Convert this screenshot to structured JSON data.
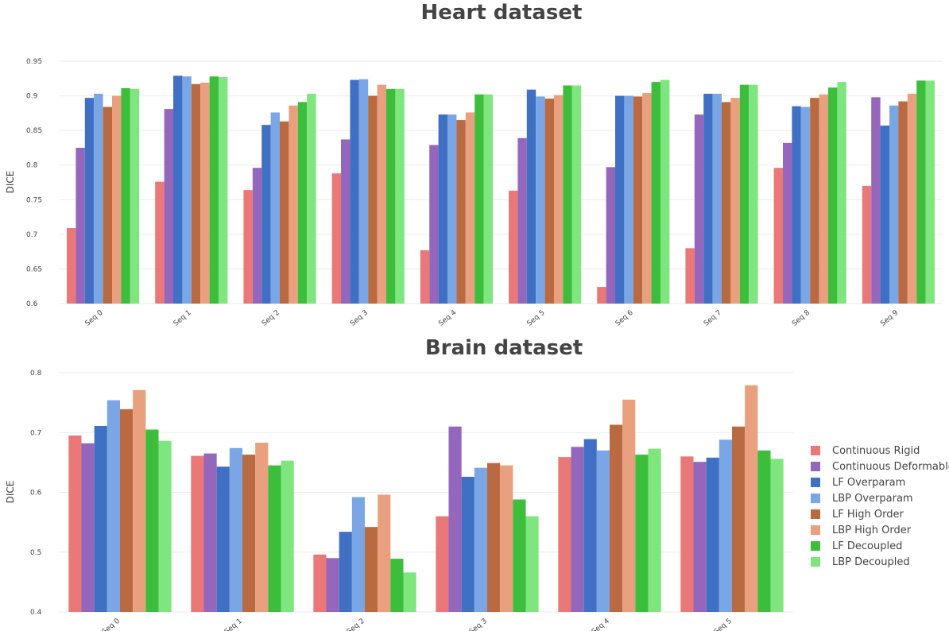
{
  "legend": [
    {
      "name": "Continuous Rigid",
      "color": "#EB7878"
    },
    {
      "name": "Continuous Deformable",
      "color": "#9467BD"
    },
    {
      "name": "LF Overparam",
      "color": "#4070C4"
    },
    {
      "name": "LBP Overparam",
      "color": "#7AA6E6"
    },
    {
      "name": "LF High Order",
      "color": "#B96A40"
    },
    {
      "name": "LBP High Order",
      "color": "#E8A07E"
    },
    {
      "name": "LF Decoupled",
      "color": "#3CBE3C"
    },
    {
      "name": "LBP Decoupled",
      "color": "#7FE67F"
    }
  ],
  "chart_data": [
    {
      "type": "bar",
      "title": "Heart dataset",
      "ylabel": "DICE",
      "xlabel": "",
      "ylim": [
        0.6,
        0.95
      ],
      "yticks": [
        "0.6",
        "0.65",
        "0.7",
        "0.75",
        "0.8",
        "0.85",
        "0.9",
        "0.95"
      ],
      "grid": true,
      "categories": [
        "Seq 0",
        "Seq 1",
        "Seq 2",
        "Seq 3",
        "Seq 4",
        "Seq 5",
        "Seq 6",
        "Seq 7",
        "Seq 8",
        "Seq 9"
      ],
      "series": [
        {
          "name": "Continuous Rigid",
          "values": [
            0.709,
            0.776,
            0.764,
            0.788,
            0.677,
            0.763,
            0.624,
            0.68,
            0.796,
            0.77
          ]
        },
        {
          "name": "Continuous Deformable",
          "values": [
            0.825,
            0.881,
            0.796,
            0.837,
            0.829,
            0.839,
            0.797,
            0.873,
            0.832,
            0.898
          ]
        },
        {
          "name": "LF Overparam",
          "values": [
            0.897,
            0.929,
            0.858,
            0.923,
            0.873,
            0.909,
            0.9,
            0.903,
            0.885,
            0.857
          ]
        },
        {
          "name": "LBP Overparam",
          "values": [
            0.903,
            0.928,
            0.876,
            0.924,
            0.873,
            0.899,
            0.9,
            0.903,
            0.884,
            0.886
          ]
        },
        {
          "name": "LF High Order",
          "values": [
            0.884,
            0.917,
            0.863,
            0.9,
            0.865,
            0.896,
            0.899,
            0.891,
            0.897,
            0.892
          ]
        },
        {
          "name": "LBP High Order",
          "values": [
            0.9,
            0.919,
            0.886,
            0.916,
            0.876,
            0.901,
            0.904,
            0.897,
            0.902,
            0.903
          ]
        },
        {
          "name": "LF Decoupled",
          "values": [
            0.911,
            0.928,
            0.891,
            0.91,
            0.902,
            0.915,
            0.92,
            0.916,
            0.912,
            0.922
          ]
        },
        {
          "name": "LBP Decoupled",
          "values": [
            0.91,
            0.927,
            0.903,
            0.91,
            0.902,
            0.915,
            0.923,
            0.916,
            0.92,
            0.922
          ]
        }
      ]
    },
    {
      "type": "bar",
      "title": "Brain dataset",
      "ylabel": "DICE",
      "xlabel": "",
      "ylim": [
        0.4,
        0.8
      ],
      "yticks": [
        "0.4",
        "0.5",
        "0.6",
        "0.7",
        "0.8"
      ],
      "grid": true,
      "categories": [
        "Seq 0",
        "Seq 1",
        "Seq 2",
        "Seq 3",
        "Seq 4",
        "Seq 5"
      ],
      "series": [
        {
          "name": "Continuous Rigid",
          "values": [
            0.695,
            0.661,
            0.496,
            0.56,
            0.659,
            0.66
          ]
        },
        {
          "name": "Continuous Deformable",
          "values": [
            0.682,
            0.665,
            0.49,
            0.71,
            0.676,
            0.651
          ]
        },
        {
          "name": "LF Overparam",
          "values": [
            0.711,
            0.643,
            0.534,
            0.626,
            0.689,
            0.658
          ]
        },
        {
          "name": "LBP Overparam",
          "values": [
            0.754,
            0.674,
            0.592,
            0.641,
            0.67,
            0.688
          ]
        },
        {
          "name": "LF High Order",
          "values": [
            0.739,
            0.663,
            0.542,
            0.649,
            0.713,
            0.71
          ]
        },
        {
          "name": "LBP High Order",
          "values": [
            0.771,
            0.683,
            0.596,
            0.645,
            0.755,
            0.779
          ]
        },
        {
          "name": "LF Decoupled",
          "values": [
            0.705,
            0.645,
            0.489,
            0.588,
            0.663,
            0.67
          ]
        },
        {
          "name": "LBP Decoupled",
          "values": [
            0.686,
            0.653,
            0.466,
            0.56,
            0.673,
            0.656
          ]
        }
      ]
    }
  ]
}
